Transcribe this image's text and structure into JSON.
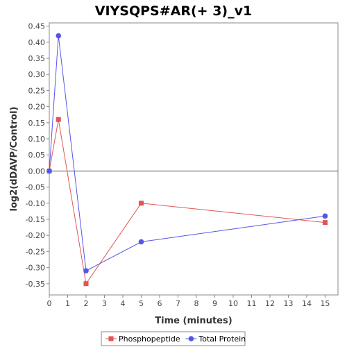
{
  "chart_data": {
    "type": "line",
    "title": "VIYSQPS#AR(+ 3)_v1",
    "xlabel": "Time (minutes)",
    "ylabel": "log2(dDAVP/Control)",
    "xlim": [
      0,
      15.7
    ],
    "ylim": [
      -0.385,
      0.46
    ],
    "xticks": [
      0,
      1,
      2,
      3,
      4,
      5,
      6,
      7,
      8,
      9,
      10,
      11,
      12,
      13,
      14,
      15
    ],
    "yticks": [
      -0.35,
      -0.3,
      -0.25,
      -0.2,
      -0.15,
      -0.1,
      -0.05,
      0.0,
      0.05,
      0.1,
      0.15,
      0.2,
      0.25,
      0.3,
      0.35,
      0.4,
      0.45
    ],
    "zero_line": true,
    "grid": false,
    "legend_position": "bottom",
    "series": [
      {
        "name": "Phosphopeptide",
        "color": "#e05555",
        "marker": "square",
        "x": [
          0,
          0.5,
          2,
          5,
          15
        ],
        "y": [
          0.0,
          0.16,
          -0.35,
          -0.1,
          -0.16
        ]
      },
      {
        "name": "Total Protein",
        "color": "#5555e8",
        "marker": "circle",
        "x": [
          0,
          0.5,
          2,
          5,
          15
        ],
        "y": [
          0.0,
          0.42,
          -0.31,
          -0.22,
          -0.14
        ]
      }
    ]
  }
}
